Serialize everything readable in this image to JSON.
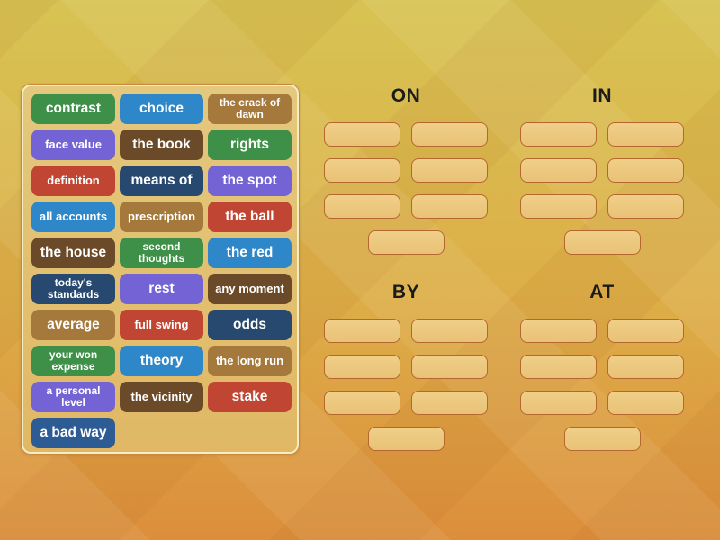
{
  "background": {
    "top_color": "#d7c353",
    "mid_color": "#ddae48",
    "bottom_color": "#dc8e3b"
  },
  "palette": {
    "green": "#3e9048",
    "blue": "#2e87c8",
    "bronze": "#a5783c",
    "brown": "#6a4a28",
    "red": "#c04532",
    "purple": "#7463d4",
    "navy": "#27486f",
    "steelblue": "#2d5c94"
  },
  "slot_style": {
    "fill": "#eecb80",
    "border": "#b5672f"
  },
  "word_bank": {
    "tiles": [
      {
        "label": "contrast",
        "color": "green"
      },
      {
        "label": "choice",
        "color": "blue"
      },
      {
        "label": "the crack of dawn",
        "color": "bronze"
      },
      {
        "label": "face value",
        "color": "purple"
      },
      {
        "label": "the book",
        "color": "brown"
      },
      {
        "label": "rights",
        "color": "green"
      },
      {
        "label": "definition",
        "color": "red"
      },
      {
        "label": "means of",
        "color": "navy"
      },
      {
        "label": "the spot",
        "color": "purple"
      },
      {
        "label": "all accounts",
        "color": "blue"
      },
      {
        "label": "prescription",
        "color": "bronze"
      },
      {
        "label": "the ball",
        "color": "red"
      },
      {
        "label": "the house",
        "color": "brown"
      },
      {
        "label": "second thoughts",
        "color": "green"
      },
      {
        "label": "the red",
        "color": "blue"
      },
      {
        "label": "today's standards",
        "color": "navy"
      },
      {
        "label": "rest",
        "color": "purple"
      },
      {
        "label": "any moment",
        "color": "brown"
      },
      {
        "label": "average",
        "color": "bronze"
      },
      {
        "label": "full swing",
        "color": "red"
      },
      {
        "label": "odds",
        "color": "navy"
      },
      {
        "label": "your won expense",
        "color": "green"
      },
      {
        "label": "theory",
        "color": "blue"
      },
      {
        "label": "the long run",
        "color": "bronze"
      },
      {
        "label": "a personal level",
        "color": "purple"
      },
      {
        "label": "the vicinity",
        "color": "brown"
      },
      {
        "label": "stake",
        "color": "red"
      },
      {
        "label": "a bad way",
        "color": "steelblue"
      }
    ]
  },
  "groups": [
    {
      "label": "ON",
      "slot_count": 7
    },
    {
      "label": "IN",
      "slot_count": 7
    },
    {
      "label": "BY",
      "slot_count": 7
    },
    {
      "label": "AT",
      "slot_count": 7
    }
  ]
}
